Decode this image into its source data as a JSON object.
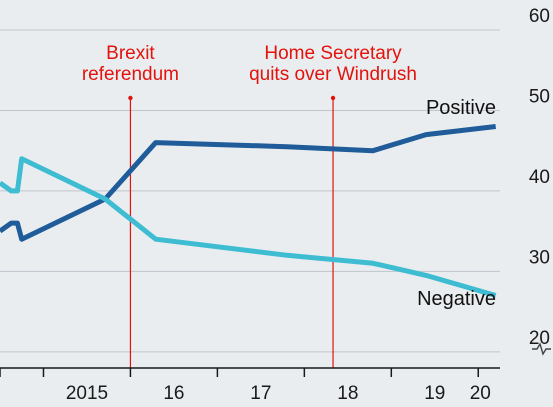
{
  "chart_data": {
    "type": "line",
    "colors": {
      "background": "#e9edf0",
      "grid": "#bfc6cc",
      "axis": "#1a1a1a",
      "annotation": "#e3120b",
      "positive": "#1f5c99",
      "negative": "#3ebcd2"
    },
    "ylim": [
      16,
      60
    ],
    "y_ticks": [
      20,
      30,
      40,
      50,
      60
    ],
    "y_axis_break_below": 20,
    "x_ticks": [
      "2015",
      "16",
      "17",
      "18",
      "19",
      "20"
    ],
    "xlim": [
      2014.5,
      2020.25
    ],
    "grid": true,
    "series": [
      {
        "name": "Positive",
        "color_key": "positive",
        "points": [
          [
            2014.5,
            35
          ],
          [
            2014.63,
            36
          ],
          [
            2014.7,
            36
          ],
          [
            2014.75,
            34
          ],
          [
            2015.71,
            39
          ],
          [
            2016.29,
            46
          ],
          [
            2017.8,
            45.5
          ],
          [
            2018.79,
            45
          ],
          [
            2019.4,
            47
          ],
          [
            2020.2,
            48
          ]
        ]
      },
      {
        "name": "Negative",
        "color_key": "negative",
        "points": [
          [
            2014.5,
            41
          ],
          [
            2014.63,
            40
          ],
          [
            2014.7,
            40
          ],
          [
            2014.75,
            44
          ],
          [
            2015.71,
            39
          ],
          [
            2016.29,
            34
          ],
          [
            2017.8,
            32
          ],
          [
            2018.79,
            31
          ],
          [
            2019.4,
            29.5
          ],
          [
            2020.2,
            27
          ]
        ]
      }
    ],
    "annotations": [
      {
        "x": 2016.0,
        "lines": [
          "Brexit",
          "referendum"
        ]
      },
      {
        "x": 2018.33,
        "lines": [
          "Home Secretary",
          "quits over Windrush"
        ]
      }
    ]
  }
}
